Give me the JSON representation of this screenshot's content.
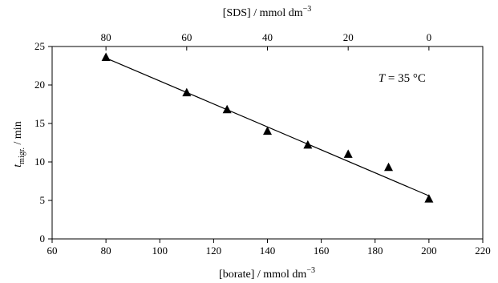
{
  "chart_data": {
    "type": "scatter",
    "title": "",
    "xlabel": "[borate] / mmol dm",
    "xlabel_sup": "−3",
    "x2label": "[SDS] / mmol dm",
    "x2label_sup": "−3",
    "ylabel_main": "t",
    "ylabel_sub": "migr.",
    "ylabel_rest": " / min",
    "xlim": [
      60,
      220
    ],
    "ylim": [
      0,
      25
    ],
    "xticks": [
      60,
      80,
      100,
      120,
      140,
      160,
      180,
      200,
      220
    ],
    "yticks": [
      0,
      5,
      10,
      15,
      20,
      25
    ],
    "x2ticks": [
      {
        "label": "80",
        "borate": 80
      },
      {
        "label": "60",
        "borate": 110
      },
      {
        "label": "40",
        "borate": 140
      },
      {
        "label": "20",
        "borate": 170
      },
      {
        "label": "0",
        "borate": 200
      }
    ],
    "grid": false,
    "series": [
      {
        "marker": "triangle",
        "x": [
          80,
          110,
          125,
          140,
          155,
          170,
          185,
          200
        ],
        "y": [
          23.6,
          19.0,
          16.8,
          14.0,
          12.2,
          11.0,
          9.3,
          5.2
        ]
      }
    ],
    "fit_line": {
      "x": [
        80,
        200
      ],
      "y": [
        23.5,
        5.6
      ]
    },
    "annotation": {
      "var": "T",
      "text": " = 35 °C",
      "at": [
        190,
        20.4
      ]
    }
  }
}
